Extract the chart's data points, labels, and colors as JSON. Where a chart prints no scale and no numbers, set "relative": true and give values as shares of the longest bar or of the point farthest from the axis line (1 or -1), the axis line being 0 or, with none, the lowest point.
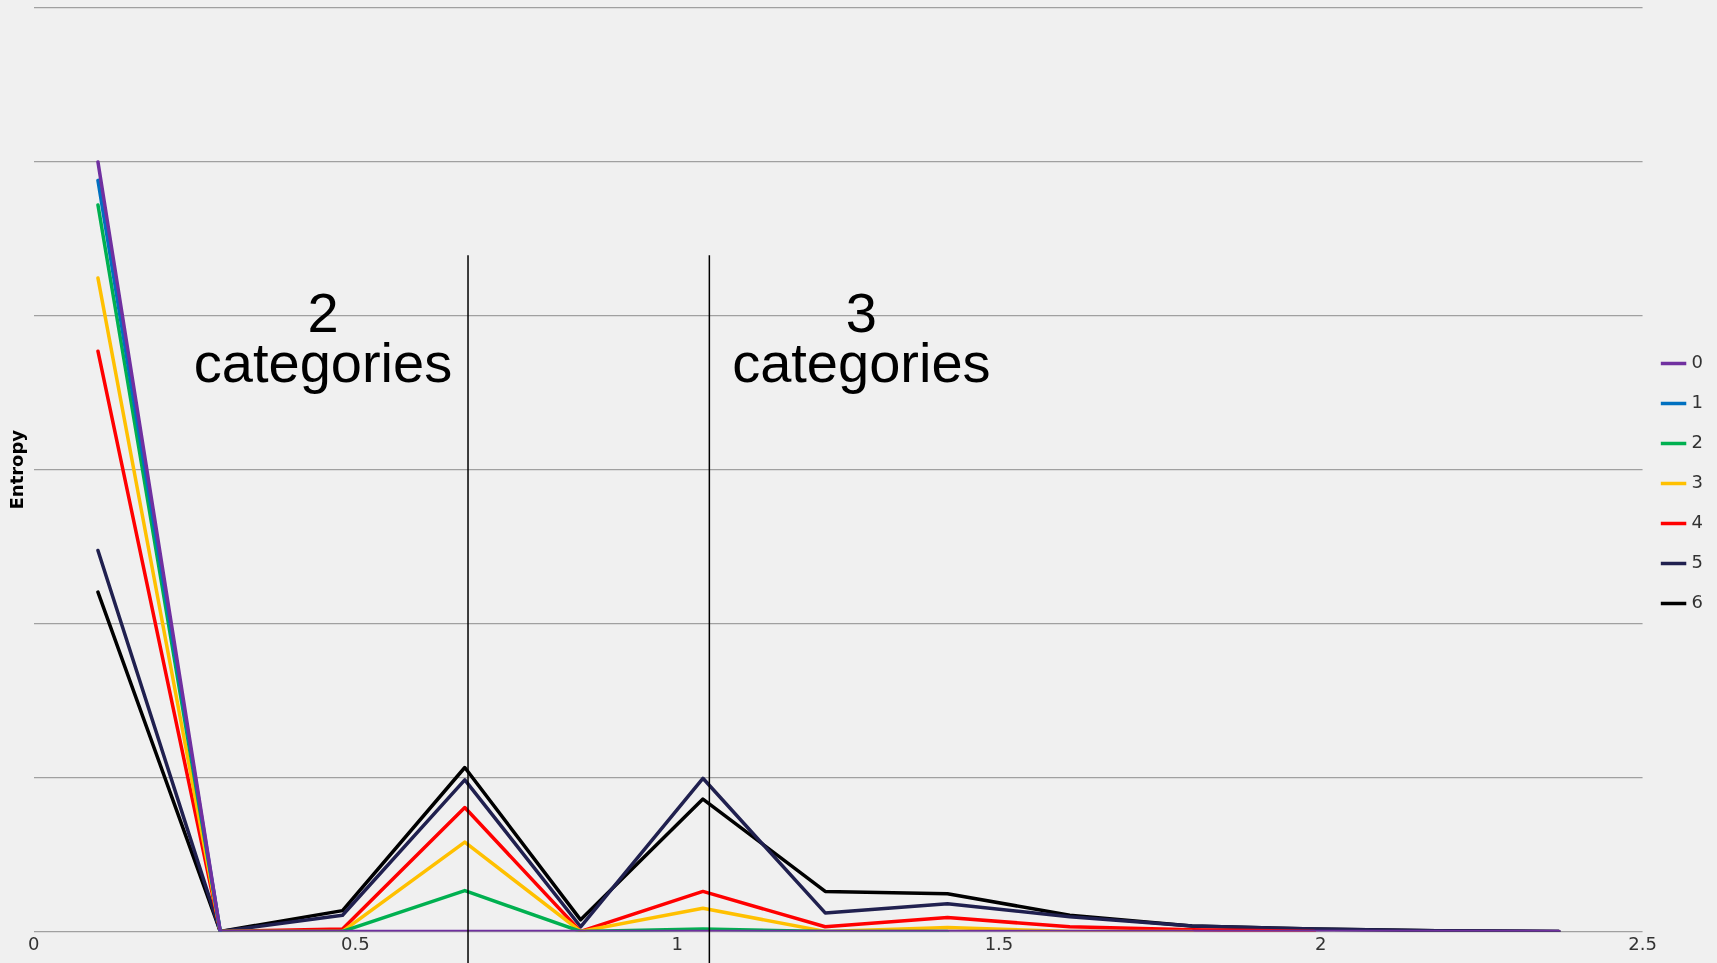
{
  "chart_data": {
    "type": "line",
    "ylabel": "Entropy",
    "relative": true,
    "x": [
      0.1,
      0.29,
      0.48,
      0.67,
      0.85,
      1.04,
      1.23,
      1.42,
      1.61,
      1.8,
      1.99,
      2.18,
      2.37
    ],
    "xlim": [
      0,
      2.5
    ],
    "xticks": [
      0,
      0.5,
      1,
      1.5,
      2,
      2.5
    ],
    "grid": "y",
    "legend": "right",
    "marker": "none",
    "line_style": "solid",
    "series": [
      {
        "name": "0",
        "color": "#7030a0",
        "values": [
          1,
          0,
          0,
          0,
          0,
          0,
          0,
          0,
          0,
          0,
          0,
          0,
          0
        ]
      },
      {
        "name": "1",
        "color": "#0070c0",
        "values": [
          0.976,
          0,
          null,
          null,
          null,
          null,
          null,
          null,
          null,
          null,
          null,
          null,
          null
        ]
      },
      {
        "name": "2",
        "color": "#00b050",
        "values": [
          0.944,
          0,
          0,
          0.053,
          0,
          0.003,
          0,
          0,
          null,
          null,
          null,
          null,
          null
        ]
      },
      {
        "name": "3",
        "color": "#ffc000",
        "values": [
          0.849,
          0,
          0,
          0.116,
          0,
          0.03,
          0,
          0.005,
          0,
          0,
          null,
          null,
          null
        ]
      },
      {
        "name": "4",
        "color": "#ff0000",
        "values": [
          0.754,
          0,
          0.003,
          0.161,
          0,
          0.052,
          0.006,
          0.018,
          0.006,
          0.002,
          0,
          null,
          null
        ]
      },
      {
        "name": "5",
        "color": "#20204f",
        "values": [
          0.495,
          0,
          0.021,
          0.197,
          0.006,
          0.199,
          0.024,
          0.036,
          0.019,
          0.007,
          0.003,
          0.001,
          0
        ]
      },
      {
        "name": "6",
        "color": "#000000",
        "values": [
          0.441,
          0,
          0.027,
          0.213,
          0.015,
          0.172,
          0.052,
          0.049,
          0.021,
          0.007,
          0.003,
          0.001,
          0
        ]
      }
    ],
    "ref_lines": [
      {
        "axis": "x",
        "value": 0.675,
        "color": "#000000",
        "label": "2 categories"
      },
      {
        "axis": "x",
        "value": 1.05,
        "color": "#000000",
        "label": "3 categories"
      }
    ]
  }
}
